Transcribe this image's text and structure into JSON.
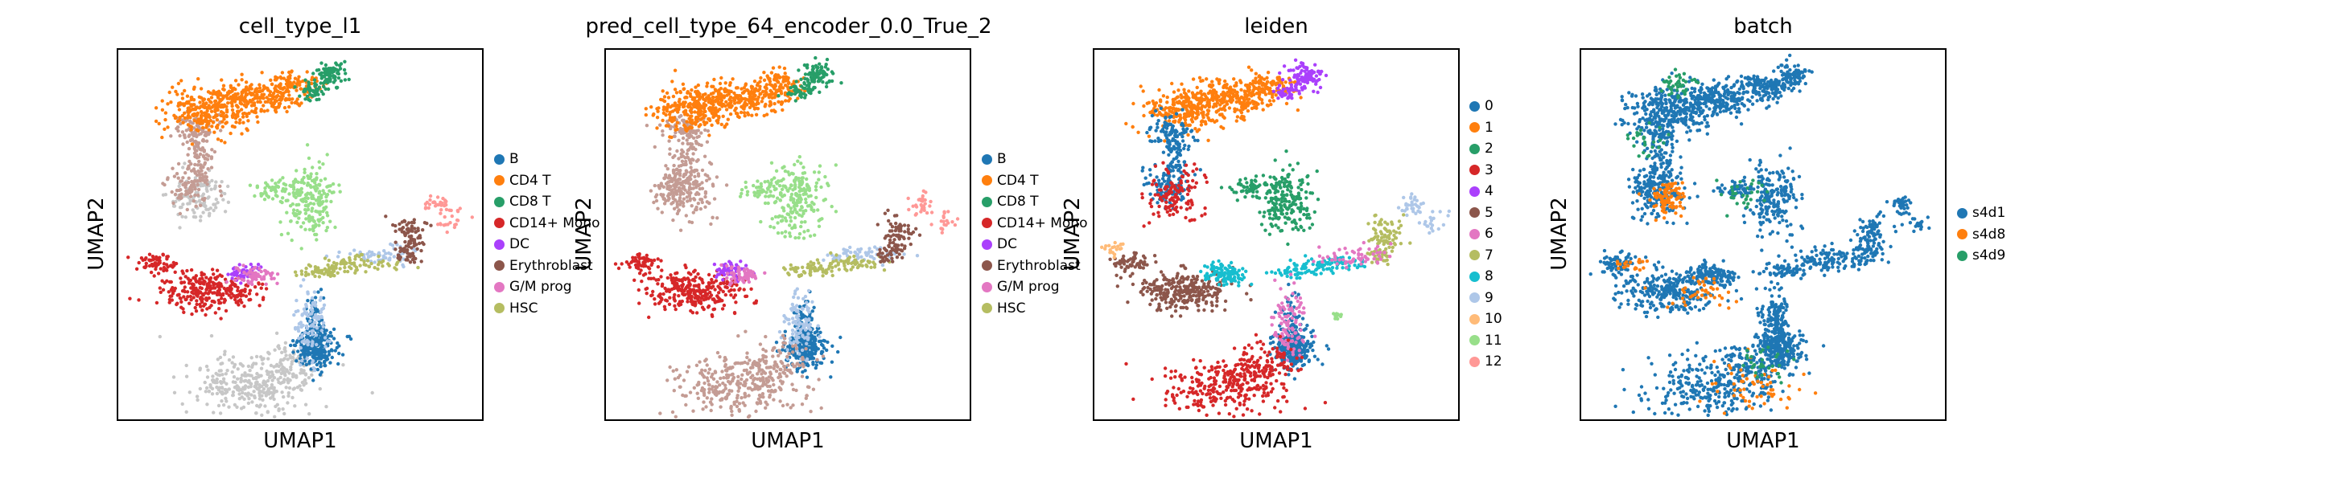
{
  "chart_data": [
    {
      "type": "scatter",
      "title": "cell_type_l1",
      "xlabel": "UMAP1",
      "ylabel": "UMAP2",
      "legend_placement": "right",
      "grid": false,
      "categories": [
        {
          "label": "B",
          "color": "#1f77b4"
        },
        {
          "label": "CD4 T",
          "color": "#ff7f0e"
        },
        {
          "label": "CD8 T",
          "color": "#279e68"
        },
        {
          "label": "CD14+ Mono",
          "color": "#d62728"
        },
        {
          "label": "DC",
          "color": "#aa40fc"
        },
        {
          "label": "Erythroblast",
          "color": "#8c564b"
        },
        {
          "label": "G/M prog",
          "color": "#e377c2"
        },
        {
          "label": "HSC",
          "color": "#b5bd61"
        }
      ]
    },
    {
      "type": "scatter",
      "title": "pred_cell_type_64_encoder_0.0_True_2",
      "xlabel": "UMAP1",
      "ylabel": "UMAP2",
      "legend_placement": "right",
      "grid": false,
      "categories": [
        {
          "label": "B",
          "color": "#1f77b4"
        },
        {
          "label": "CD4 T",
          "color": "#ff7f0e"
        },
        {
          "label": "CD8 T",
          "color": "#279e68"
        },
        {
          "label": "CD14+ Mono",
          "color": "#d62728"
        },
        {
          "label": "DC",
          "color": "#aa40fc"
        },
        {
          "label": "Erythroblast",
          "color": "#8c564b"
        },
        {
          "label": "G/M prog",
          "color": "#e377c2"
        },
        {
          "label": "HSC",
          "color": "#b5bd61"
        }
      ]
    },
    {
      "type": "scatter",
      "title": "leiden",
      "xlabel": "UMAP1",
      "ylabel": "UMAP2",
      "legend_placement": "right",
      "grid": false,
      "categories": [
        {
          "label": "0",
          "color": "#1f77b4"
        },
        {
          "label": "1",
          "color": "#ff7f0e"
        },
        {
          "label": "2",
          "color": "#279e68"
        },
        {
          "label": "3",
          "color": "#d62728"
        },
        {
          "label": "4",
          "color": "#aa40fc"
        },
        {
          "label": "5",
          "color": "#8c564b"
        },
        {
          "label": "6",
          "color": "#e377c2"
        },
        {
          "label": "7",
          "color": "#b5bd61"
        },
        {
          "label": "8",
          "color": "#17becf"
        },
        {
          "label": "9",
          "color": "#aec7e8"
        },
        {
          "label": "10",
          "color": "#ffbb78"
        },
        {
          "label": "11",
          "color": "#98df8a"
        },
        {
          "label": "12",
          "color": "#ff9896"
        }
      ]
    },
    {
      "type": "scatter",
      "title": "batch",
      "xlabel": "UMAP1",
      "ylabel": "UMAP2",
      "legend_placement": "right",
      "grid": false,
      "categories": [
        {
          "label": "s4d1",
          "color": "#1f77b4"
        },
        {
          "label": "s4d8",
          "color": "#ff7f0e"
        },
        {
          "label": "s4d9",
          "color": "#279e68"
        }
      ]
    }
  ]
}
